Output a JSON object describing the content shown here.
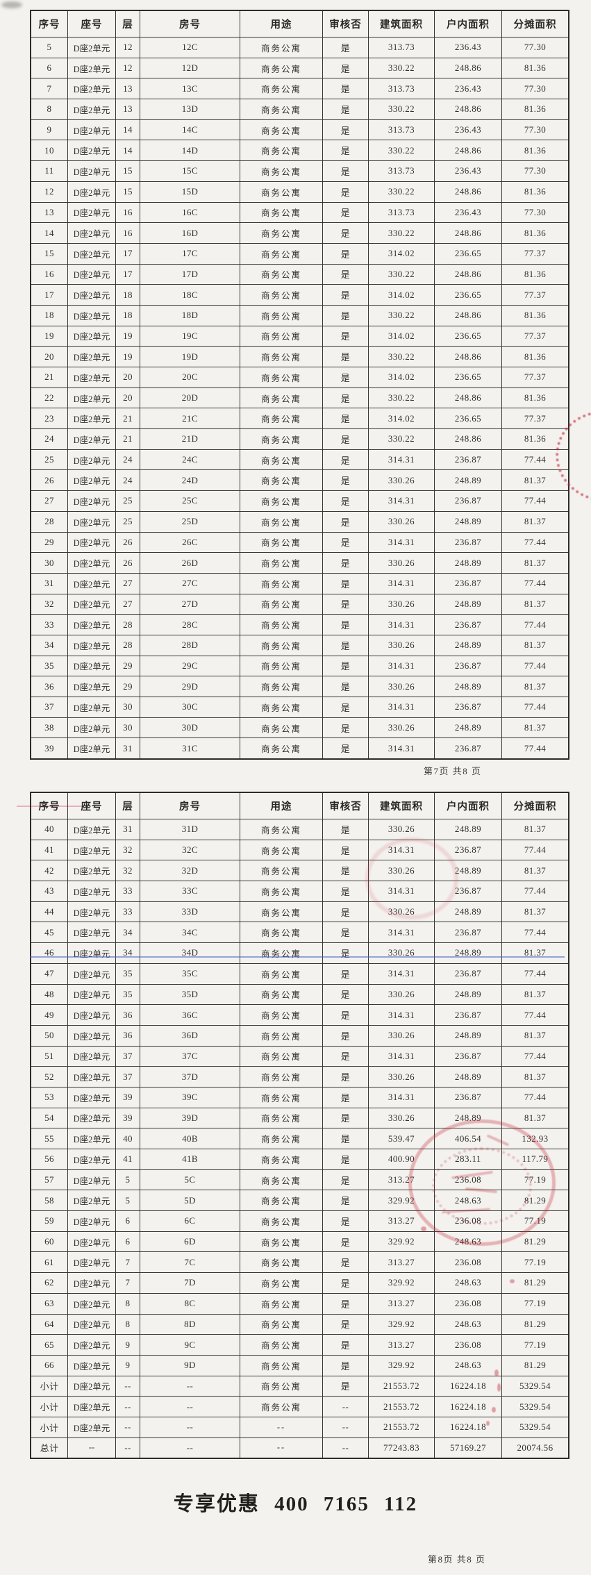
{
  "document": {
    "pages": [
      {
        "page_label": "第7页 共8 页",
        "columns": [
          "序号",
          "座号",
          "层",
          "房号",
          "用途",
          "审核否",
          "建筑面积",
          "户内面积",
          "分摊面积"
        ],
        "rows": [
          [
            "5",
            "D座2单元",
            "12",
            "12C",
            "商务公寓",
            "是",
            "313.73",
            "236.43",
            "77.30"
          ],
          [
            "6",
            "D座2单元",
            "12",
            "12D",
            "商务公寓",
            "是",
            "330.22",
            "248.86",
            "81.36"
          ],
          [
            "7",
            "D座2单元",
            "13",
            "13C",
            "商务公寓",
            "是",
            "313.73",
            "236.43",
            "77.30"
          ],
          [
            "8",
            "D座2单元",
            "13",
            "13D",
            "商务公寓",
            "是",
            "330.22",
            "248.86",
            "81.36"
          ],
          [
            "9",
            "D座2单元",
            "14",
            "14C",
            "商务公寓",
            "是",
            "313.73",
            "236.43",
            "77.30"
          ],
          [
            "10",
            "D座2单元",
            "14",
            "14D",
            "商务公寓",
            "是",
            "330.22",
            "248.86",
            "81.36"
          ],
          [
            "11",
            "D座2单元",
            "15",
            "15C",
            "商务公寓",
            "是",
            "313.73",
            "236.43",
            "77.30"
          ],
          [
            "12",
            "D座2单元",
            "15",
            "15D",
            "商务公寓",
            "是",
            "330.22",
            "248.86",
            "81.36"
          ],
          [
            "13",
            "D座2单元",
            "16",
            "16C",
            "商务公寓",
            "是",
            "313.73",
            "236.43",
            "77.30"
          ],
          [
            "14",
            "D座2单元",
            "16",
            "16D",
            "商务公寓",
            "是",
            "330.22",
            "248.86",
            "81.36"
          ],
          [
            "15",
            "D座2单元",
            "17",
            "17C",
            "商务公寓",
            "是",
            "314.02",
            "236.65",
            "77.37"
          ],
          [
            "16",
            "D座2单元",
            "17",
            "17D",
            "商务公寓",
            "是",
            "330.22",
            "248.86",
            "81.36"
          ],
          [
            "17",
            "D座2单元",
            "18",
            "18C",
            "商务公寓",
            "是",
            "314.02",
            "236.65",
            "77.37"
          ],
          [
            "18",
            "D座2单元",
            "18",
            "18D",
            "商务公寓",
            "是",
            "330.22",
            "248.86",
            "81.36"
          ],
          [
            "19",
            "D座2单元",
            "19",
            "19C",
            "商务公寓",
            "是",
            "314.02",
            "236.65",
            "77.37"
          ],
          [
            "20",
            "D座2单元",
            "19",
            "19D",
            "商务公寓",
            "是",
            "330.22",
            "248.86",
            "81.36"
          ],
          [
            "21",
            "D座2单元",
            "20",
            "20C",
            "商务公寓",
            "是",
            "314.02",
            "236.65",
            "77.37"
          ],
          [
            "22",
            "D座2单元",
            "20",
            "20D",
            "商务公寓",
            "是",
            "330.22",
            "248.86",
            "81.36"
          ],
          [
            "23",
            "D座2单元",
            "21",
            "21C",
            "商务公寓",
            "是",
            "314.02",
            "236.65",
            "77.37"
          ],
          [
            "24",
            "D座2单元",
            "21",
            "21D",
            "商务公寓",
            "是",
            "330.22",
            "248.86",
            "81.36"
          ],
          [
            "25",
            "D座2单元",
            "24",
            "24C",
            "商务公寓",
            "是",
            "314.31",
            "236.87",
            "77.44"
          ],
          [
            "26",
            "D座2单元",
            "24",
            "24D",
            "商务公寓",
            "是",
            "330.26",
            "248.89",
            "81.37"
          ],
          [
            "27",
            "D座2单元",
            "25",
            "25C",
            "商务公寓",
            "是",
            "314.31",
            "236.87",
            "77.44"
          ],
          [
            "28",
            "D座2单元",
            "25",
            "25D",
            "商务公寓",
            "是",
            "330.26",
            "248.89",
            "81.37"
          ],
          [
            "29",
            "D座2单元",
            "26",
            "26C",
            "商务公寓",
            "是",
            "314.31",
            "236.87",
            "77.44"
          ],
          [
            "30",
            "D座2单元",
            "26",
            "26D",
            "商务公寓",
            "是",
            "330.26",
            "248.89",
            "81.37"
          ],
          [
            "31",
            "D座2单元",
            "27",
            "27C",
            "商务公寓",
            "是",
            "314.31",
            "236.87",
            "77.44"
          ],
          [
            "32",
            "D座2单元",
            "27",
            "27D",
            "商务公寓",
            "是",
            "330.26",
            "248.89",
            "81.37"
          ],
          [
            "33",
            "D座2单元",
            "28",
            "28C",
            "商务公寓",
            "是",
            "314.31",
            "236.87",
            "77.44"
          ],
          [
            "34",
            "D座2单元",
            "28",
            "28D",
            "商务公寓",
            "是",
            "330.26",
            "248.89",
            "81.37"
          ],
          [
            "35",
            "D座2单元",
            "29",
            "29C",
            "商务公寓",
            "是",
            "314.31",
            "236.87",
            "77.44"
          ],
          [
            "36",
            "D座2单元",
            "29",
            "29D",
            "商务公寓",
            "是",
            "330.26",
            "248.89",
            "81.37"
          ],
          [
            "37",
            "D座2单元",
            "30",
            "30C",
            "商务公寓",
            "是",
            "314.31",
            "236.87",
            "77.44"
          ],
          [
            "38",
            "D座2单元",
            "30",
            "30D",
            "商务公寓",
            "是",
            "330.26",
            "248.89",
            "81.37"
          ],
          [
            "39",
            "D座2单元",
            "31",
            "31C",
            "商务公寓",
            "是",
            "314.31",
            "236.87",
            "77.44"
          ]
        ]
      },
      {
        "page_label": "第8页 共8 页",
        "columns": [
          "序号",
          "座号",
          "层",
          "房号",
          "用途",
          "审核否",
          "建筑面积",
          "户内面积",
          "分摊面积"
        ],
        "rows": [
          [
            "40",
            "D座2单元",
            "31",
            "31D",
            "商务公寓",
            "是",
            "330.26",
            "248.89",
            "81.37"
          ],
          [
            "41",
            "D座2单元",
            "32",
            "32C",
            "商务公寓",
            "是",
            "314.31",
            "236.87",
            "77.44"
          ],
          [
            "42",
            "D座2单元",
            "32",
            "32D",
            "商务公寓",
            "是",
            "330.26",
            "248.89",
            "81.37"
          ],
          [
            "43",
            "D座2单元",
            "33",
            "33C",
            "商务公寓",
            "是",
            "314.31",
            "236.87",
            "77.44"
          ],
          [
            "44",
            "D座2单元",
            "33",
            "33D",
            "商务公寓",
            "是",
            "330.26",
            "248.89",
            "81.37"
          ],
          [
            "45",
            "D座2单元",
            "34",
            "34C",
            "商务公寓",
            "是",
            "314.31",
            "236.87",
            "77.44"
          ],
          [
            "46",
            "D座2单元",
            "34",
            "34D",
            "商务公寓",
            "是",
            "330.26",
            "248.89",
            "81.37"
          ],
          [
            "47",
            "D座2单元",
            "35",
            "35C",
            "商务公寓",
            "是",
            "314.31",
            "236.87",
            "77.44"
          ],
          [
            "48",
            "D座2单元",
            "35",
            "35D",
            "商务公寓",
            "是",
            "330.26",
            "248.89",
            "81.37"
          ],
          [
            "49",
            "D座2单元",
            "36",
            "36C",
            "商务公寓",
            "是",
            "314.31",
            "236.87",
            "77.44"
          ],
          [
            "50",
            "D座2单元",
            "36",
            "36D",
            "商务公寓",
            "是",
            "330.26",
            "248.89",
            "81.37"
          ],
          [
            "51",
            "D座2单元",
            "37",
            "37C",
            "商务公寓",
            "是",
            "314.31",
            "236.87",
            "77.44"
          ],
          [
            "52",
            "D座2单元",
            "37",
            "37D",
            "商务公寓",
            "是",
            "330.26",
            "248.89",
            "81.37"
          ],
          [
            "53",
            "D座2单元",
            "39",
            "39C",
            "商务公寓",
            "是",
            "314.31",
            "236.87",
            "77.44"
          ],
          [
            "54",
            "D座2单元",
            "39",
            "39D",
            "商务公寓",
            "是",
            "330.26",
            "248.89",
            "81.37"
          ],
          [
            "55",
            "D座2单元",
            "40",
            "40B",
            "商务公寓",
            "是",
            "539.47",
            "406.54",
            "132.93"
          ],
          [
            "56",
            "D座2单元",
            "41",
            "41B",
            "商务公寓",
            "是",
            "400.90",
            "283.11",
            "117.79"
          ],
          [
            "57",
            "D座2单元",
            "5",
            "5C",
            "商务公寓",
            "是",
            "313.27",
            "236.08",
            "77.19"
          ],
          [
            "58",
            "D座2单元",
            "5",
            "5D",
            "商务公寓",
            "是",
            "329.92",
            "248.63",
            "81.29"
          ],
          [
            "59",
            "D座2单元",
            "6",
            "6C",
            "商务公寓",
            "是",
            "313.27",
            "236.08",
            "77.19"
          ],
          [
            "60",
            "D座2单元",
            "6",
            "6D",
            "商务公寓",
            "是",
            "329.92",
            "248.63",
            "81.29"
          ],
          [
            "61",
            "D座2单元",
            "7",
            "7C",
            "商务公寓",
            "是",
            "313.27",
            "236.08",
            "77.19"
          ],
          [
            "62",
            "D座2单元",
            "7",
            "7D",
            "商务公寓",
            "是",
            "329.92",
            "248.63",
            "81.29"
          ],
          [
            "63",
            "D座2单元",
            "8",
            "8C",
            "商务公寓",
            "是",
            "313.27",
            "236.08",
            "77.19"
          ],
          [
            "64",
            "D座2单元",
            "8",
            "8D",
            "商务公寓",
            "是",
            "329.92",
            "248.63",
            "81.29"
          ],
          [
            "65",
            "D座2单元",
            "9",
            "9C",
            "商务公寓",
            "是",
            "313.27",
            "236.08",
            "77.19"
          ],
          [
            "66",
            "D座2单元",
            "9",
            "9D",
            "商务公寓",
            "是",
            "329.92",
            "248.63",
            "81.29"
          ],
          [
            "小计",
            "D座2单元",
            "--",
            "--",
            "商务公寓",
            "是",
            "21553.72",
            "16224.18",
            "5329.54"
          ],
          [
            "小计",
            "D座2单元",
            "--",
            "--",
            "商务公寓",
            "--",
            "21553.72",
            "16224.18",
            "5329.54"
          ],
          [
            "小计",
            "D座2单元",
            "--",
            "--",
            "--",
            "--",
            "21553.72",
            "16224.18",
            "5329.54"
          ],
          [
            "总计",
            "--",
            "--",
            "--",
            "--",
            "--",
            "77243.83",
            "57169.27",
            "20074.56"
          ]
        ]
      }
    ],
    "footer": {
      "promo_text": "专享优惠 400 7165 112"
    }
  },
  "colors": {
    "stamp_red": "#c62a3e",
    "annotation_blue": "#4462ca",
    "table_border": "#3a3732",
    "paper": "#f3f2ee"
  }
}
